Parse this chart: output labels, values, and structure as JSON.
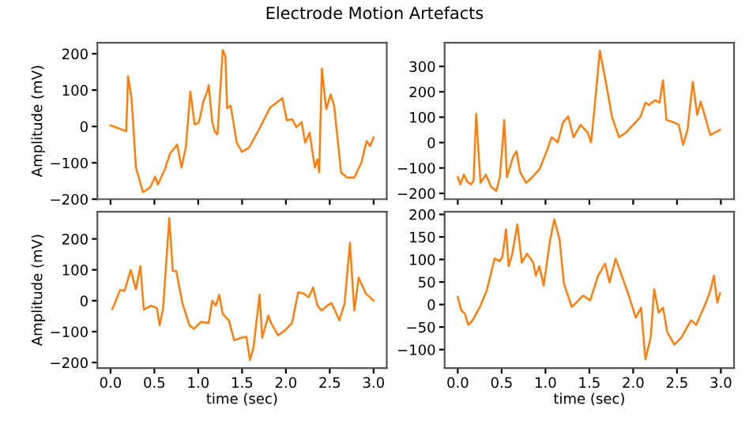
{
  "chart_data": [
    {
      "type": "line",
      "title": "Electrode Motion Artefacts",
      "ylabel": "Amplitude (mV)",
      "tick_labels": "y",
      "xlim": [
        -0.15,
        3.15
      ],
      "xticks": [
        {
          "value": 0,
          "label": null
        },
        {
          "value": 0.5,
          "label": null
        },
        {
          "value": 1,
          "label": null
        },
        {
          "value": 1.5,
          "label": null
        },
        {
          "value": 2,
          "label": null
        },
        {
          "value": 2.5,
          "label": null
        },
        {
          "value": 3,
          "label": null
        }
      ],
      "ylim": [
        -200,
        230
      ],
      "yticks": [
        -200,
        -100,
        0,
        100,
        200
      ],
      "series": [
        {
          "color": "#ff7f0e",
          "x": [
            0,
            0.18,
            0.2,
            0.24,
            0.29,
            0.37,
            0.45,
            0.51,
            0.54,
            0.62,
            0.68,
            0.76,
            0.81,
            0.86,
            0.91,
            0.96,
            1.01,
            1.06,
            1.1,
            1.12,
            1.16,
            1.19,
            1.22,
            1.28,
            1.31,
            1.33,
            1.37,
            1.44,
            1.5,
            1.58,
            1.69,
            1.82,
            1.96,
            2.01,
            2.07,
            2.12,
            2.18,
            2.22,
            2.27,
            2.33,
            2.36,
            2.38,
            2.41,
            2.46,
            2.51,
            2.55,
            2.63,
            2.7,
            2.78,
            2.86,
            2.92,
            2.96,
            3.0
          ],
          "values": [
            3,
            -13,
            138,
            77,
            -113,
            -181,
            -168,
            -138,
            -160,
            -118,
            -74,
            -50,
            -113,
            -56,
            96,
            5,
            12,
            69,
            94,
            114,
            12,
            -15,
            -22,
            210,
            193,
            50,
            57,
            -45,
            -70,
            -58,
            -10,
            52,
            78,
            17,
            20,
            -2,
            12,
            -45,
            -17,
            -113,
            -90,
            -126,
            159,
            47,
            88,
            57,
            -127,
            -141,
            -141,
            -100,
            -40,
            -54,
            -30
          ]
        }
      ]
    },
    {
      "type": "line",
      "tick_labels": "y",
      "xlim": [
        -0.15,
        3.15
      ],
      "xticks": [
        {
          "value": 0,
          "label": null
        },
        {
          "value": 0.5,
          "label": null
        },
        {
          "value": 1,
          "label": null
        },
        {
          "value": 1.5,
          "label": null
        },
        {
          "value": 2,
          "label": null
        },
        {
          "value": 2.5,
          "label": null
        },
        {
          "value": 3,
          "label": null
        }
      ],
      "ylim": [
        -223,
        393
      ],
      "yticks": [
        -200,
        -100,
        0,
        100,
        200,
        300
      ],
      "series": [
        {
          "color": "#ff7f0e",
          "x": [
            0,
            0.03,
            0.07,
            0.11,
            0.15,
            0.18,
            0.21,
            0.24,
            0.26,
            0.32,
            0.38,
            0.44,
            0.48,
            0.51,
            0.53,
            0.56,
            0.63,
            0.67,
            0.71,
            0.78,
            0.85,
            0.93,
            1.01,
            1.07,
            1.14,
            1.2,
            1.26,
            1.32,
            1.4,
            1.48,
            1.52,
            1.56,
            1.62,
            1.69,
            1.76,
            1.84,
            1.92,
            2.0,
            2.08,
            2.14,
            2.18,
            2.25,
            2.3,
            2.34,
            2.38,
            2.47,
            2.52,
            2.57,
            2.62,
            2.68,
            2.73,
            2.77,
            2.88,
            2.99
          ],
          "values": [
            -136,
            -165,
            -126,
            -155,
            -165,
            -151,
            114,
            -57,
            -159,
            -126,
            -175,
            -190,
            -136,
            -9,
            89,
            -136,
            -57,
            -34,
            -116,
            -159,
            -136,
            -106,
            -38,
            21,
            1,
            79,
            103,
            21,
            70,
            40,
            1,
            138,
            362,
            236,
            99,
            21,
            40,
            70,
            99,
            157,
            148,
            167,
            157,
            245,
            89,
            79,
            70,
            -9,
            50,
            239,
            109,
            161,
            30,
            50
          ]
        }
      ]
    },
    {
      "type": "line",
      "ylabel": "Amplitude (mV)",
      "xlabel": "time (sec)",
      "xlim": [
        -0.15,
        3.15
      ],
      "xticks": [
        {
          "value": 0,
          "label": "0.0"
        },
        {
          "value": 0.5,
          "label": "0.5"
        },
        {
          "value": 1,
          "label": "1.0"
        },
        {
          "value": 1.5,
          "label": "1.5"
        },
        {
          "value": 2,
          "label": "2.0"
        },
        {
          "value": 2.5,
          "label": "2.5"
        },
        {
          "value": 3,
          "label": "3.0"
        }
      ],
      "ylim": [
        -218,
        288
      ],
      "yticks": [
        -200,
        -100,
        0,
        100,
        200
      ],
      "series": [
        {
          "color": "#ff7f0e",
          "x": [
            0.02,
            0.05,
            0.11,
            0.16,
            0.23,
            0.29,
            0.34,
            0.38,
            0.46,
            0.53,
            0.56,
            0.6,
            0.67,
            0.71,
            0.75,
            0.82,
            0.9,
            0.95,
            1.03,
            1.12,
            1.16,
            1.2,
            1.24,
            1.28,
            1.35,
            1.41,
            1.49,
            1.55,
            1.59,
            1.63,
            1.7,
            1.73,
            1.8,
            1.83,
            1.91,
            1.99,
            2.07,
            2.14,
            2.2,
            2.26,
            2.31,
            2.36,
            2.41,
            2.47,
            2.52,
            2.56,
            2.61,
            2.67,
            2.73,
            2.78,
            2.83,
            2.91,
            3.0
          ],
          "values": [
            -27,
            -8,
            35,
            32,
            99,
            37,
            112,
            -29,
            -16,
            -24,
            -80,
            -24,
            267,
            96,
            96,
            -8,
            -80,
            -91,
            -69,
            -72,
            0,
            -16,
            19,
            -43,
            -64,
            -128,
            -120,
            -117,
            -192,
            -152,
            19,
            -120,
            -48,
            -72,
            -112,
            -96,
            -72,
            27,
            24,
            11,
            43,
            -16,
            -32,
            -16,
            -8,
            -32,
            -64,
            -8,
            187,
            -32,
            75,
            24,
            0
          ]
        }
      ]
    },
    {
      "type": "line",
      "xlabel": "time (sec)",
      "xlim": [
        -0.15,
        3.15
      ],
      "xticks": [
        {
          "value": 0,
          "label": "0.0"
        },
        {
          "value": 0.5,
          "label": "0.5"
        },
        {
          "value": 1,
          "label": "1.0"
        },
        {
          "value": 1.5,
          "label": "1.5"
        },
        {
          "value": 2,
          "label": "2.0"
        },
        {
          "value": 2.5,
          "label": "2.5"
        },
        {
          "value": 3,
          "label": "3.0"
        }
      ],
      "ylim": [
        -141,
        206
      ],
      "yticks": [
        -100,
        -50,
        0,
        50,
        100,
        150,
        200
      ],
      "series": [
        {
          "color": "#ff7f0e",
          "x": [
            0,
            0.04,
            0.08,
            0.12,
            0.17,
            0.26,
            0.33,
            0.42,
            0.48,
            0.51,
            0.55,
            0.58,
            0.62,
            0.68,
            0.73,
            0.79,
            0.86,
            0.89,
            0.93,
            0.98,
            1.05,
            1.1,
            1.16,
            1.21,
            1.3,
            1.35,
            1.43,
            1.51,
            1.6,
            1.68,
            1.73,
            1.8,
            1.87,
            1.95,
            2.03,
            2.09,
            2.14,
            2.2,
            2.24,
            2.29,
            2.34,
            2.39,
            2.47,
            2.55,
            2.66,
            2.72,
            2.83,
            2.88,
            2.92,
            2.96,
            2.99
          ],
          "values": [
            17,
            -13,
            -20,
            -45,
            -35,
            -2,
            31,
            102,
            96,
            107,
            167,
            85,
            111,
            178,
            93,
            113,
            93,
            64,
            85,
            42,
            140,
            189,
            145,
            47,
            -5,
            4,
            20,
            9,
            64,
            91,
            49,
            102,
            64,
            20,
            -29,
            -7,
            -122,
            -73,
            34,
            -18,
            -7,
            -62,
            -89,
            -73,
            -35,
            -45,
            4,
            31,
            64,
            4,
            25
          ]
        }
      ]
    }
  ]
}
